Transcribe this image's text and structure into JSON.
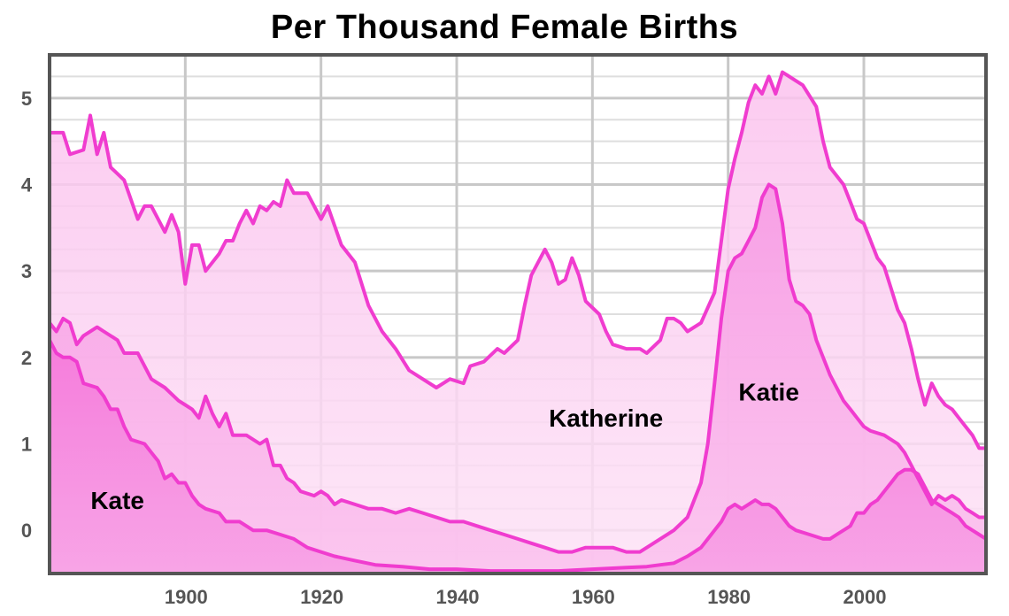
{
  "chart_data": {
    "type": "area",
    "title": "Per Thousand Female Births",
    "xlabel": "",
    "ylabel": "",
    "xlim": [
      1880,
      2018
    ],
    "ylim": [
      -0.5,
      5.5
    ],
    "x_ticks": [
      1900,
      1920,
      1940,
      1960,
      1980,
      2000
    ],
    "y_ticks": [
      0,
      1,
      2,
      3,
      4,
      5
    ],
    "grid": true,
    "legend": "none",
    "colors": {
      "line": "#f03ccf",
      "fill_light": "#fcd4f3",
      "fill_mid": "#f9a8e8",
      "fill_dark": "#f57bdc",
      "axis": "#555555",
      "grid": "#cccccc"
    },
    "annotations": [
      {
        "text": "Katherine",
        "series": "Katherine",
        "x": 1962,
        "y": 1.2
      },
      {
        "text": "Katie",
        "series": "Katie",
        "x": 1986,
        "y": 1.5
      },
      {
        "text": "Kate",
        "series": "Kate",
        "x": 1890,
        "y": 0.25
      }
    ],
    "series": [
      {
        "name": "Katherine",
        "points": [
          [
            1880,
            4.6
          ],
          [
            1882,
            4.6
          ],
          [
            1883,
            4.35
          ],
          [
            1885,
            4.4
          ],
          [
            1886,
            4.8
          ],
          [
            1887,
            4.35
          ],
          [
            1888,
            4.6
          ],
          [
            1889,
            4.2
          ],
          [
            1891,
            4.05
          ],
          [
            1893,
            3.6
          ],
          [
            1894,
            3.75
          ],
          [
            1895,
            3.75
          ],
          [
            1897,
            3.45
          ],
          [
            1898,
            3.65
          ],
          [
            1899,
            3.45
          ],
          [
            1900,
            2.85
          ],
          [
            1901,
            3.3
          ],
          [
            1902,
            3.3
          ],
          [
            1903,
            3.0
          ],
          [
            1905,
            3.2
          ],
          [
            1906,
            3.35
          ],
          [
            1907,
            3.35
          ],
          [
            1908,
            3.55
          ],
          [
            1909,
            3.7
          ],
          [
            1910,
            3.55
          ],
          [
            1911,
            3.75
          ],
          [
            1912,
            3.7
          ],
          [
            1913,
            3.8
          ],
          [
            1914,
            3.75
          ],
          [
            1915,
            4.05
          ],
          [
            1916,
            3.9
          ],
          [
            1918,
            3.9
          ],
          [
            1920,
            3.6
          ],
          [
            1921,
            3.75
          ],
          [
            1923,
            3.3
          ],
          [
            1925,
            3.1
          ],
          [
            1927,
            2.6
          ],
          [
            1929,
            2.3
          ],
          [
            1931,
            2.1
          ],
          [
            1933,
            1.85
          ],
          [
            1935,
            1.75
          ],
          [
            1937,
            1.65
          ],
          [
            1939,
            1.75
          ],
          [
            1941,
            1.7
          ],
          [
            1942,
            1.9
          ],
          [
            1944,
            1.95
          ],
          [
            1946,
            2.1
          ],
          [
            1947,
            2.05
          ],
          [
            1949,
            2.2
          ],
          [
            1950,
            2.6
          ],
          [
            1951,
            2.95
          ],
          [
            1953,
            3.25
          ],
          [
            1954,
            3.1
          ],
          [
            1955,
            2.85
          ],
          [
            1956,
            2.9
          ],
          [
            1957,
            3.15
          ],
          [
            1958,
            2.95
          ],
          [
            1959,
            2.65
          ],
          [
            1961,
            2.5
          ],
          [
            1962,
            2.3
          ],
          [
            1963,
            2.15
          ],
          [
            1965,
            2.1
          ],
          [
            1967,
            2.1
          ],
          [
            1968,
            2.05
          ],
          [
            1970,
            2.2
          ],
          [
            1971,
            2.45
          ],
          [
            1972,
            2.45
          ],
          [
            1973,
            2.4
          ],
          [
            1974,
            2.3
          ],
          [
            1976,
            2.4
          ],
          [
            1978,
            2.75
          ],
          [
            1979,
            3.35
          ],
          [
            1980,
            3.95
          ],
          [
            1981,
            4.3
          ],
          [
            1982,
            4.6
          ],
          [
            1983,
            4.95
          ],
          [
            1984,
            5.15
          ],
          [
            1985,
            5.05
          ],
          [
            1986,
            5.25
          ],
          [
            1987,
            5.05
          ],
          [
            1988,
            5.3
          ],
          [
            1989,
            5.25
          ],
          [
            1990,
            5.2
          ],
          [
            1991,
            5.15
          ],
          [
            1993,
            4.9
          ],
          [
            1994,
            4.5
          ],
          [
            1995,
            4.2
          ],
          [
            1997,
            4.0
          ],
          [
            1998,
            3.8
          ],
          [
            1999,
            3.6
          ],
          [
            2000,
            3.55
          ],
          [
            2002,
            3.15
          ],
          [
            2003,
            3.05
          ],
          [
            2004,
            2.8
          ],
          [
            2005,
            2.55
          ],
          [
            2006,
            2.4
          ],
          [
            2007,
            2.1
          ],
          [
            2008,
            1.75
          ],
          [
            2009,
            1.45
          ],
          [
            2010,
            1.7
          ],
          [
            2011,
            1.55
          ],
          [
            2012,
            1.45
          ],
          [
            2013,
            1.4
          ],
          [
            2014,
            1.3
          ],
          [
            2015,
            1.2
          ],
          [
            2016,
            1.1
          ],
          [
            2017,
            0.95
          ],
          [
            2018,
            0.95
          ]
        ]
      },
      {
        "name": "Katie",
        "points": [
          [
            1880,
            2.4
          ],
          [
            1881,
            2.3
          ],
          [
            1882,
            2.45
          ],
          [
            1883,
            2.4
          ],
          [
            1884,
            2.15
          ],
          [
            1885,
            2.25
          ],
          [
            1887,
            2.35
          ],
          [
            1888,
            2.3
          ],
          [
            1890,
            2.2
          ],
          [
            1891,
            2.05
          ],
          [
            1893,
            2.05
          ],
          [
            1895,
            1.75
          ],
          [
            1897,
            1.65
          ],
          [
            1899,
            1.5
          ],
          [
            1900,
            1.45
          ],
          [
            1901,
            1.4
          ],
          [
            1902,
            1.3
          ],
          [
            1903,
            1.55
          ],
          [
            1904,
            1.35
          ],
          [
            1905,
            1.2
          ],
          [
            1906,
            1.35
          ],
          [
            1907,
            1.1
          ],
          [
            1909,
            1.1
          ],
          [
            1911,
            1.0
          ],
          [
            1912,
            1.05
          ],
          [
            1913,
            0.75
          ],
          [
            1914,
            0.75
          ],
          [
            1915,
            0.6
          ],
          [
            1916,
            0.55
          ],
          [
            1917,
            0.45
          ],
          [
            1919,
            0.4
          ],
          [
            1920,
            0.45
          ],
          [
            1921,
            0.4
          ],
          [
            1922,
            0.3
          ],
          [
            1923,
            0.35
          ],
          [
            1925,
            0.3
          ],
          [
            1927,
            0.25
          ],
          [
            1929,
            0.25
          ],
          [
            1931,
            0.2
          ],
          [
            1933,
            0.25
          ],
          [
            1935,
            0.2
          ],
          [
            1937,
            0.15
          ],
          [
            1939,
            0.1
          ],
          [
            1941,
            0.1
          ],
          [
            1943,
            0.05
          ],
          [
            1945,
            0.0
          ],
          [
            1947,
            -0.05
          ],
          [
            1949,
            -0.1
          ],
          [
            1951,
            -0.15
          ],
          [
            1953,
            -0.2
          ],
          [
            1955,
            -0.25
          ],
          [
            1957,
            -0.25
          ],
          [
            1959,
            -0.2
          ],
          [
            1961,
            -0.2
          ],
          [
            1963,
            -0.2
          ],
          [
            1965,
            -0.25
          ],
          [
            1967,
            -0.25
          ],
          [
            1968,
            -0.2
          ],
          [
            1970,
            -0.1
          ],
          [
            1972,
            0.0
          ],
          [
            1974,
            0.15
          ],
          [
            1975,
            0.35
          ],
          [
            1976,
            0.55
          ],
          [
            1977,
            1.0
          ],
          [
            1978,
            1.7
          ],
          [
            1979,
            2.45
          ],
          [
            1980,
            3.0
          ],
          [
            1981,
            3.15
          ],
          [
            1982,
            3.2
          ],
          [
            1983,
            3.35
          ],
          [
            1984,
            3.5
          ],
          [
            1985,
            3.85
          ],
          [
            1986,
            4.0
          ],
          [
            1987,
            3.95
          ],
          [
            1988,
            3.55
          ],
          [
            1989,
            2.9
          ],
          [
            1990,
            2.65
          ],
          [
            1991,
            2.6
          ],
          [
            1992,
            2.5
          ],
          [
            1993,
            2.2
          ],
          [
            1994,
            2.0
          ],
          [
            1995,
            1.8
          ],
          [
            1996,
            1.65
          ],
          [
            1997,
            1.5
          ],
          [
            1998,
            1.4
          ],
          [
            1999,
            1.3
          ],
          [
            2000,
            1.2
          ],
          [
            2001,
            1.15
          ],
          [
            2003,
            1.1
          ],
          [
            2005,
            1.0
          ],
          [
            2006,
            0.9
          ],
          [
            2007,
            0.75
          ],
          [
            2008,
            0.6
          ],
          [
            2009,
            0.45
          ],
          [
            2010,
            0.3
          ],
          [
            2011,
            0.4
          ],
          [
            2012,
            0.35
          ],
          [
            2013,
            0.4
          ],
          [
            2014,
            0.35
          ],
          [
            2015,
            0.25
          ],
          [
            2016,
            0.2
          ],
          [
            2017,
            0.15
          ],
          [
            2018,
            0.15
          ]
        ]
      },
      {
        "name": "Kate",
        "points": [
          [
            1880,
            2.2
          ],
          [
            1881,
            2.05
          ],
          [
            1882,
            2.0
          ],
          [
            1883,
            2.0
          ],
          [
            1884,
            1.95
          ],
          [
            1885,
            1.7
          ],
          [
            1887,
            1.65
          ],
          [
            1888,
            1.55
          ],
          [
            1889,
            1.4
          ],
          [
            1890,
            1.4
          ],
          [
            1891,
            1.2
          ],
          [
            1892,
            1.05
          ],
          [
            1894,
            1.0
          ],
          [
            1895,
            0.9
          ],
          [
            1896,
            0.8
          ],
          [
            1897,
            0.6
          ],
          [
            1898,
            0.65
          ],
          [
            1899,
            0.55
          ],
          [
            1900,
            0.55
          ],
          [
            1901,
            0.4
          ],
          [
            1902,
            0.3
          ],
          [
            1903,
            0.25
          ],
          [
            1905,
            0.2
          ],
          [
            1906,
            0.1
          ],
          [
            1908,
            0.1
          ],
          [
            1910,
            0.0
          ],
          [
            1912,
            0.0
          ],
          [
            1914,
            -0.05
          ],
          [
            1916,
            -0.1
          ],
          [
            1918,
            -0.2
          ],
          [
            1920,
            -0.25
          ],
          [
            1922,
            -0.3
          ],
          [
            1925,
            -0.35
          ],
          [
            1928,
            -0.4
          ],
          [
            1932,
            -0.42
          ],
          [
            1936,
            -0.45
          ],
          [
            1940,
            -0.45
          ],
          [
            1945,
            -0.47
          ],
          [
            1950,
            -0.47
          ],
          [
            1955,
            -0.47
          ],
          [
            1960,
            -0.45
          ],
          [
            1965,
            -0.43
          ],
          [
            1968,
            -0.42
          ],
          [
            1970,
            -0.4
          ],
          [
            1972,
            -0.38
          ],
          [
            1974,
            -0.3
          ],
          [
            1976,
            -0.2
          ],
          [
            1977,
            -0.1
          ],
          [
            1978,
            0.0
          ],
          [
            1979,
            0.1
          ],
          [
            1980,
            0.25
          ],
          [
            1981,
            0.3
          ],
          [
            1982,
            0.25
          ],
          [
            1983,
            0.3
          ],
          [
            1984,
            0.35
          ],
          [
            1985,
            0.3
          ],
          [
            1986,
            0.3
          ],
          [
            1987,
            0.25
          ],
          [
            1988,
            0.15
          ],
          [
            1989,
            0.05
          ],
          [
            1990,
            0.0
          ],
          [
            1992,
            -0.05
          ],
          [
            1994,
            -0.1
          ],
          [
            1995,
            -0.1
          ],
          [
            1996,
            -0.05
          ],
          [
            1998,
            0.05
          ],
          [
            1999,
            0.2
          ],
          [
            2000,
            0.2
          ],
          [
            2001,
            0.3
          ],
          [
            2002,
            0.35
          ],
          [
            2003,
            0.45
          ],
          [
            2004,
            0.55
          ],
          [
            2005,
            0.65
          ],
          [
            2006,
            0.7
          ],
          [
            2007,
            0.7
          ],
          [
            2008,
            0.65
          ],
          [
            2009,
            0.5
          ],
          [
            2010,
            0.35
          ],
          [
            2011,
            0.3
          ],
          [
            2012,
            0.25
          ],
          [
            2013,
            0.2
          ],
          [
            2014,
            0.15
          ],
          [
            2015,
            0.05
          ],
          [
            2016,
            0.0
          ],
          [
            2017,
            -0.05
          ],
          [
            2018,
            -0.1
          ]
        ]
      }
    ]
  }
}
